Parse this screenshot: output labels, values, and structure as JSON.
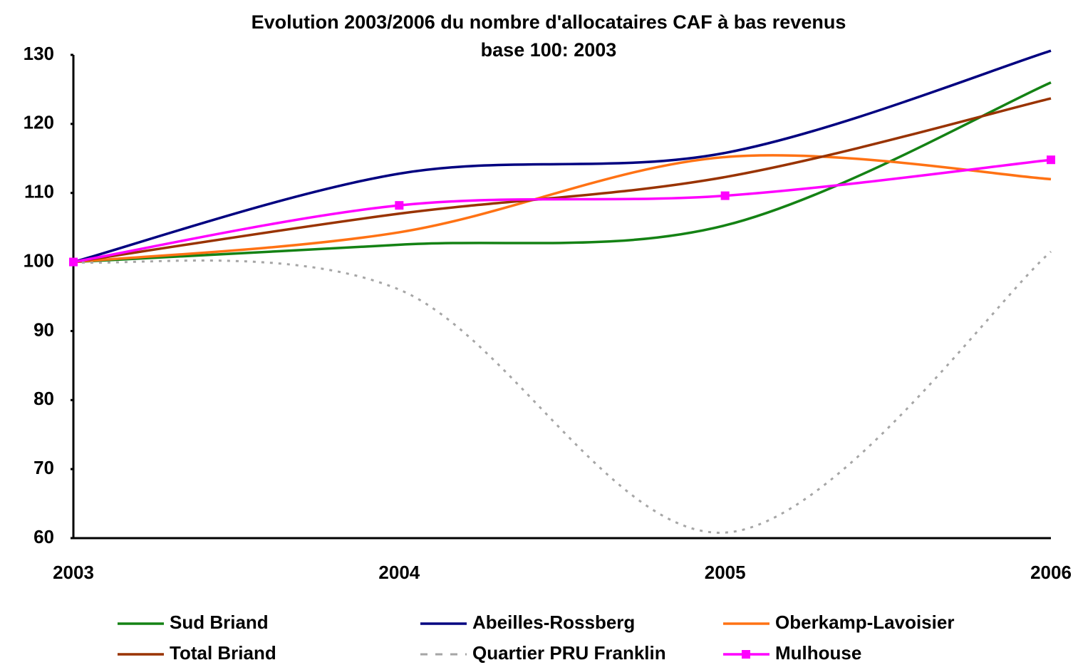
{
  "chart_data": {
    "type": "line",
    "title": "Evolution 2003/2006 du nombre d'allocataires CAF à bas revenus",
    "subtitle": "base 100: 2003",
    "categories": [
      "2003",
      "2004",
      "2005",
      "2006"
    ],
    "ylim": [
      60,
      130
    ],
    "yticks": [
      60,
      70,
      80,
      90,
      100,
      110,
      120,
      130
    ],
    "grid": false,
    "smooth": true,
    "series": [
      {
        "name": "Sud Briand",
        "color": "#148214",
        "dash": false,
        "marker": false,
        "values": [
          100,
          102.5,
          105.3,
          126
        ]
      },
      {
        "name": "Abeilles-Rossberg",
        "color": "#000080",
        "dash": false,
        "marker": false,
        "values": [
          100,
          112.8,
          115.8,
          130.6
        ]
      },
      {
        "name": "Oberkamp-Lavoisier",
        "color": "#ff7214",
        "dash": false,
        "marker": false,
        "values": [
          100,
          104.3,
          115.2,
          112
        ]
      },
      {
        "name": "Total Briand",
        "color": "#993300",
        "dash": false,
        "marker": false,
        "values": [
          100,
          107,
          112.3,
          123.7
        ]
      },
      {
        "name": "Quartier PRU Franklin",
        "color": "#a6a6a6",
        "dash": true,
        "marker": false,
        "values": [
          100,
          96,
          60.8,
          101.5
        ]
      },
      {
        "name": "Mulhouse",
        "color": "#ff00ff",
        "dash": false,
        "marker": true,
        "values": [
          100,
          108.2,
          109.6,
          114.8
        ]
      }
    ]
  }
}
